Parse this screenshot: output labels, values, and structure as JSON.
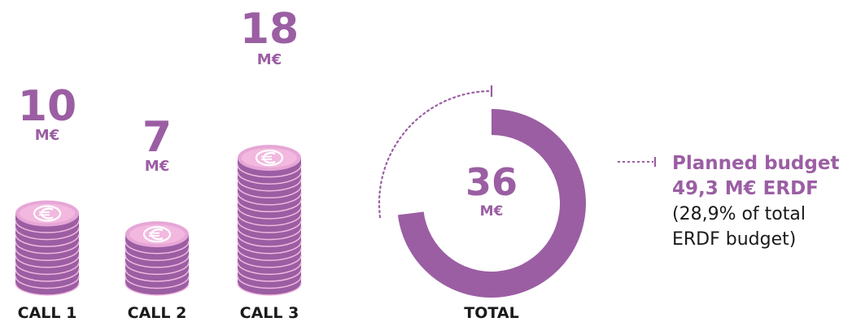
{
  "chart_data": [
    {
      "type": "bar",
      "categories": [
        "CALL 1",
        "CALL 2",
        "CALL 3"
      ],
      "values": [
        10,
        7,
        18
      ],
      "unit": "M€",
      "value_labels": [
        "10",
        "7",
        "18"
      ]
    },
    {
      "type": "pie",
      "total_label": "TOTAL",
      "value": 36,
      "value_label": "36",
      "unit": "M€",
      "planned": 49.3,
      "annotation": {
        "line1": "Planned budget",
        "line2": "49,3 M€ ERDF",
        "line3": "(28,9% of total",
        "line4": "ERDF budget)"
      }
    }
  ],
  "colors": {
    "accent": "#9B5EA3",
    "coin_face": "#F2B8DF",
    "coin_rim": "#E6A6D6",
    "text": "#1a1a1a"
  }
}
